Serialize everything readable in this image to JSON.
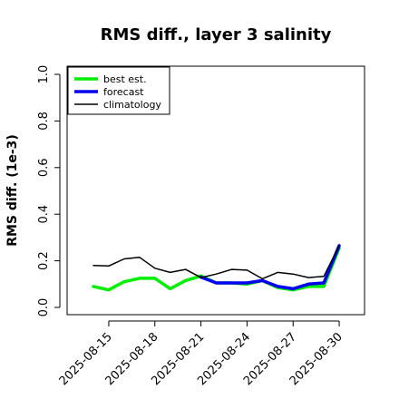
{
  "chart_data": {
    "type": "line",
    "title": "RMS diff., layer 3 salinity",
    "xlabel": "",
    "ylabel": "RMS diff. (1e-3)",
    "ylim": [
      0.0,
      1.0
    ],
    "yticks": [
      "0.0",
      "0.2",
      "0.4",
      "0.6",
      "0.8",
      "1.0"
    ],
    "x_range_days": [
      0,
      17
    ],
    "xtick_labels": [
      "2025-08-15",
      "2025-08-18",
      "2025-08-21",
      "2025-08-24",
      "2025-08-27",
      "2025-08-30"
    ],
    "highlight_tick": "2025-08-21",
    "highlight_color": "#228b22",
    "grid": false,
    "legend_position": "top-left",
    "series": [
      {
        "name": "best est.",
        "color": "#00ee00",
        "x": [
          0,
          1,
          2,
          3,
          4,
          5,
          6,
          7,
          8,
          9,
          10,
          11,
          12,
          13,
          14,
          15,
          16
        ],
        "values": [
          0.09,
          0.075,
          0.11,
          0.125,
          0.125,
          0.08,
          0.115,
          0.135,
          0.105,
          0.105,
          0.1,
          0.115,
          0.085,
          0.075,
          0.09,
          0.09,
          0.255
        ]
      },
      {
        "name": "forecast",
        "color": "#0000ee",
        "x": [
          7,
          8,
          9,
          10,
          11,
          12,
          13,
          14,
          15,
          16
        ],
        "values": [
          0.13,
          0.105,
          0.105,
          0.105,
          0.115,
          0.09,
          0.08,
          0.1,
          0.105,
          0.265
        ]
      },
      {
        "name": "climatology",
        "color": "#000000",
        "x": [
          0,
          1,
          2,
          3,
          4,
          5,
          6,
          7,
          8,
          9,
          10,
          11,
          12,
          13,
          14,
          15,
          16
        ],
        "values": [
          0.18,
          0.178,
          0.208,
          0.215,
          0.168,
          0.15,
          0.163,
          0.128,
          0.143,
          0.163,
          0.16,
          0.123,
          0.15,
          0.143,
          0.128,
          0.133,
          0.265
        ]
      }
    ]
  }
}
